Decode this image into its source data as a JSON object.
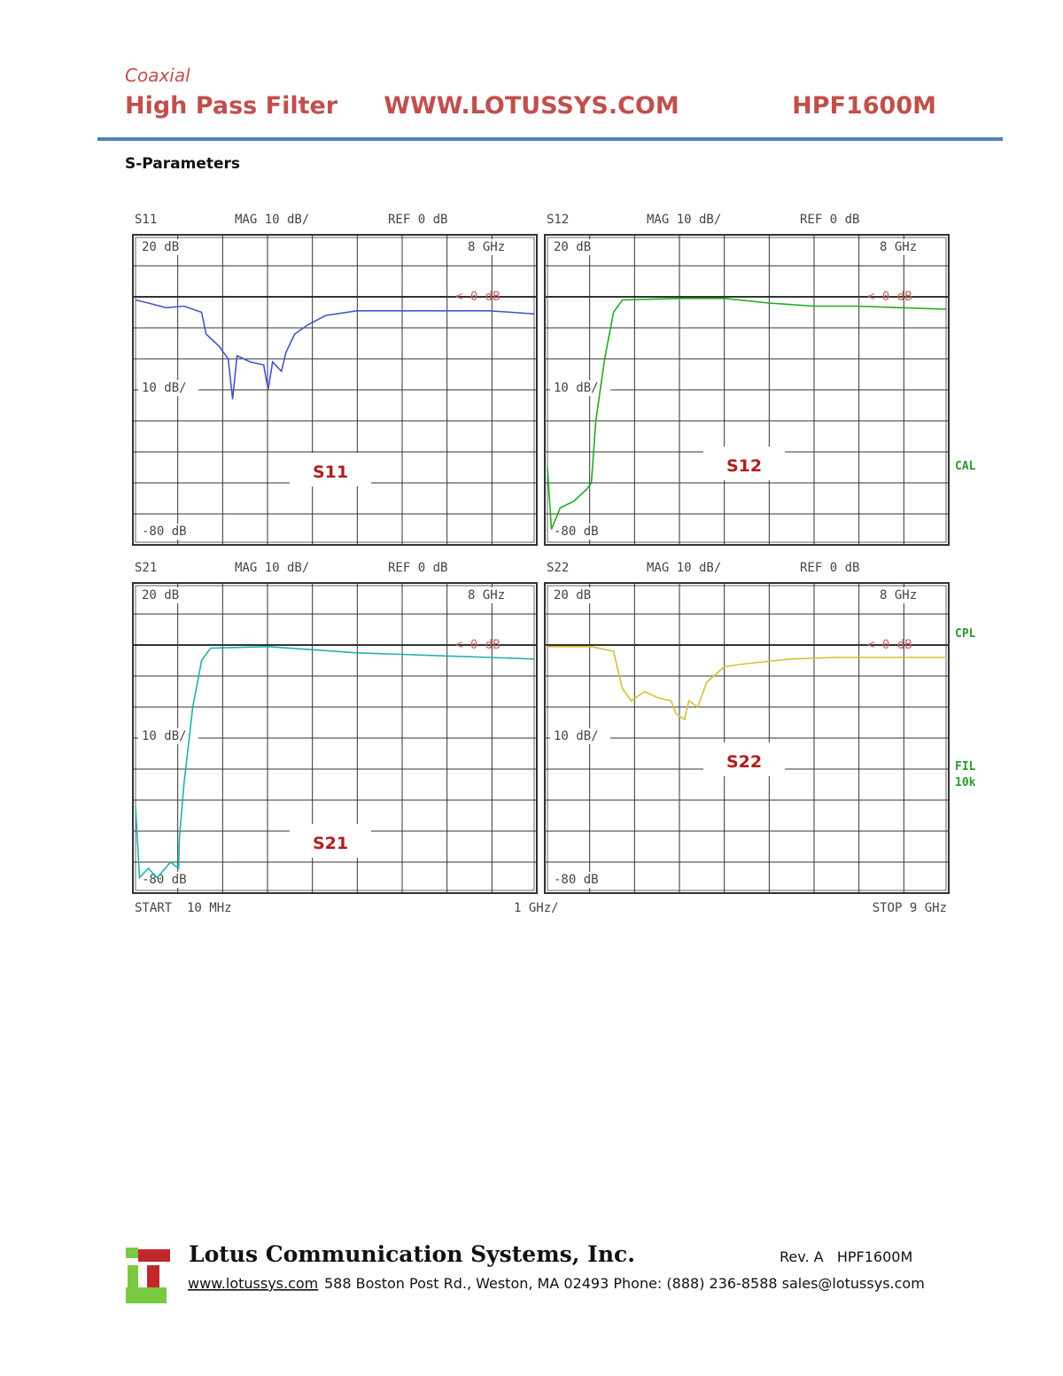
{
  "header": {
    "category": "Coaxial",
    "title": "High Pass Filter",
    "website": "WWW.LOTUSSYS.COM",
    "model": "HPF1600M"
  },
  "section": "S-Parameters",
  "plots": [
    {
      "param": "S11",
      "scale": "MAG 10 dB/",
      "ref": "REF 0 dB",
      "top_label": "20 dB",
      "marker": "8 GHz",
      "ref_marker": "< 0 dB",
      "div_label": "10 dB/",
      "bottom_label": "-80 dB",
      "trace_label": "S11",
      "color": "#4455cc",
      "xlim": [
        0.01,
        9
      ],
      "ylim": [
        -80,
        20
      ],
      "x": [
        0.01,
        0.3,
        0.7,
        1.1,
        1.5,
        1.6,
        1.9,
        2.1,
        2.2,
        2.3,
        2.6,
        2.9,
        3.0,
        3.1,
        3.3,
        3.4,
        3.6,
        3.9,
        4.3,
        5,
        6,
        7,
        8,
        8.5,
        9
      ],
      "values": [
        -1,
        -2,
        -3.5,
        -3,
        -5,
        -12,
        -16,
        -20,
        -33,
        -19,
        -21,
        -22,
        -30,
        -21,
        -24,
        -18,
        -12,
        -9,
        -6,
        -4.5,
        -4.5,
        -4.5,
        -4.5,
        -5,
        -5.5
      ]
    },
    {
      "param": "S12",
      "scale": "MAG 10 dB/",
      "ref": "REF 0 dB",
      "top_label": "20 dB",
      "marker": "8 GHz",
      "ref_marker": "< 0 dB",
      "div_label": "10 dB/",
      "bottom_label": "-80 dB",
      "trace_label": "S12",
      "color": "#22aa22",
      "xlim": [
        0.01,
        9
      ],
      "ylim": [
        -80,
        20
      ],
      "x": [
        0.01,
        0.1,
        0.3,
        0.6,
        0.9,
        1.0,
        1.1,
        1.3,
        1.5,
        1.7,
        3,
        4,
        5,
        6,
        7,
        8,
        9
      ],
      "values": [
        -55,
        -75,
        -68,
        -66,
        -62,
        -60,
        -40,
        -20,
        -5,
        -1,
        -0.5,
        -0.5,
        -2,
        -3,
        -3,
        -3.5,
        -4
      ]
    },
    {
      "param": "S21",
      "scale": "MAG 10 dB/",
      "ref": "REF 0 dB",
      "top_label": "20 dB",
      "marker": "8 GHz",
      "ref_marker": "< 0 dB",
      "div_label": "10 dB/",
      "bottom_label": "-80 dB",
      "trace_label": "S21",
      "color": "#22b0b0",
      "xlim": [
        0.01,
        9
      ],
      "ylim": [
        -80,
        20
      ],
      "x": [
        0.01,
        0.1,
        0.3,
        0.5,
        0.8,
        0.98,
        1.0,
        1.1,
        1.3,
        1.5,
        1.7,
        3,
        4,
        5,
        6,
        7,
        8,
        9
      ],
      "values": [
        -52,
        -75,
        -72,
        -75,
        -70,
        -72,
        -62,
        -45,
        -20,
        -5,
        -1,
        -0.5,
        -1.5,
        -2.5,
        -3,
        -3.5,
        -4,
        -4.5
      ]
    },
    {
      "param": "S22",
      "scale": "MAG 10 dB/",
      "ref": "REF 0 dB",
      "top_label": "20 dB",
      "marker": "8 GHz",
      "ref_marker": "< 0 dB",
      "div_label": "10 dB/",
      "bottom_label": "-80 dB",
      "trace_label": "S22",
      "color": "#d4c030",
      "xlim": [
        0.01,
        9
      ],
      "ylim": [
        -80,
        20
      ],
      "x": [
        0.01,
        1.0,
        1.5,
        1.7,
        1.9,
        2.2,
        2.5,
        2.8,
        2.9,
        3.1,
        3.2,
        3.4,
        3.6,
        4.0,
        4.5,
        5.5,
        6.5,
        8,
        9
      ],
      "values": [
        -0.5,
        -0.5,
        -2,
        -14,
        -18,
        -15,
        -17,
        -18,
        -22,
        -24,
        -18,
        -20,
        -12,
        -7,
        -6,
        -4.5,
        -4,
        -4,
        -4
      ]
    }
  ],
  "side_labels": [
    "CAL",
    "CPL",
    "FIL",
    "10k"
  ],
  "x_axis": {
    "start": "START  10 MHz",
    "span": "1 GHz/",
    "stop": "STOP 9 GHz"
  },
  "footer": {
    "company": "Lotus Communication Systems, Inc.",
    "revision": "Rev. A   HPF1600M",
    "link": "www.lotussys.com",
    "address": "588 Boston Post Rd., Weston, MA 02493 Phone: (888) 236-8588 sales@lotussys.com"
  }
}
